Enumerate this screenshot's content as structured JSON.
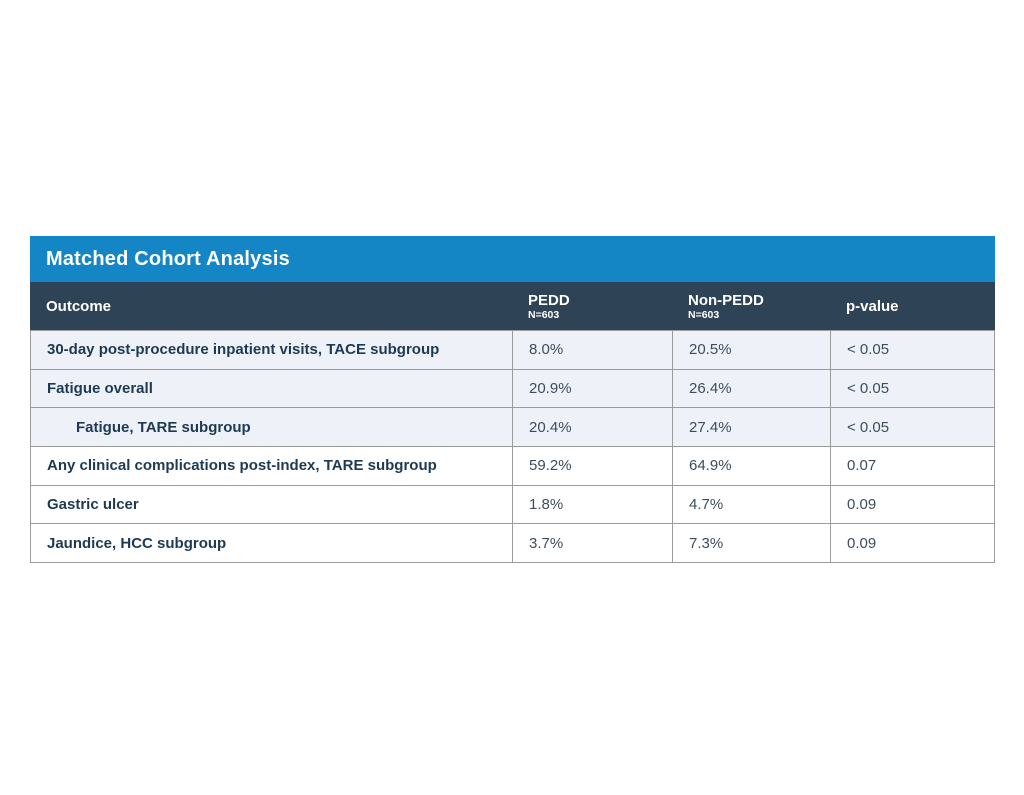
{
  "title": "Matched Cohort Analysis",
  "columns": [
    {
      "label": "Outcome",
      "sub": ""
    },
    {
      "label": "PEDD",
      "sub": "N=603"
    },
    {
      "label": "Non-PEDD",
      "sub": "N=603"
    },
    {
      "label": "p-value",
      "sub": ""
    }
  ],
  "rows": [
    {
      "outcome": "30-day post-procedure inpatient visits, TACE subgroup",
      "pedd": "8.0%",
      "non_pedd": "20.5%",
      "p_value": "< 0.05",
      "shaded": true,
      "indented": false
    },
    {
      "outcome": "Fatigue overall",
      "pedd": "20.9%",
      "non_pedd": "26.4%",
      "p_value": "< 0.05",
      "shaded": true,
      "indented": false
    },
    {
      "outcome": "Fatigue, TARE subgroup",
      "pedd": "20.4%",
      "non_pedd": "27.4%",
      "p_value": "< 0.05",
      "shaded": true,
      "indented": true
    },
    {
      "outcome": "Any clinical complications post-index, TARE subgroup",
      "pedd": "59.2%",
      "non_pedd": "64.9%",
      "p_value": "0.07",
      "shaded": false,
      "indented": false
    },
    {
      "outcome": "Gastric ulcer",
      "pedd": "1.8%",
      "non_pedd": "4.7%",
      "p_value": "0.09",
      "shaded": false,
      "indented": false
    },
    {
      "outcome": "Jaundice, HCC subgroup",
      "pedd": "3.7%",
      "non_pedd": "7.3%",
      "p_value": "0.09",
      "shaded": false,
      "indented": false
    }
  ],
  "colors": {
    "title_bar_bg": "#1486c6",
    "header_bg": "#2e4355",
    "header_text": "#ffffff",
    "shaded_row_bg": "#eef2f8",
    "white_row_bg": "#ffffff",
    "border": "#9b9b9b",
    "label_text": "#1d3a52",
    "value_text": "#3d4d5c"
  }
}
